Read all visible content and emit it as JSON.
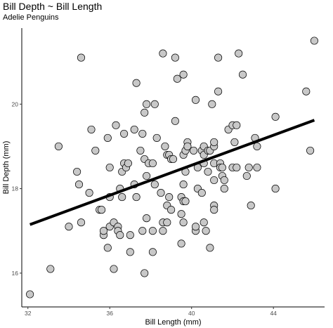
{
  "chart_data": {
    "type": "scatter",
    "title": "Bill Depth ~ Bill Length",
    "subtitle": "Adelie Penguins",
    "xlabel": "Bill Length (mm)",
    "ylabel": "Bill Depth (mm)",
    "xlim": [
      31.7,
      46.5
    ],
    "ylim": [
      15.2,
      21.8
    ],
    "x_ticks": [
      32,
      36,
      40,
      44
    ],
    "y_ticks": [
      16,
      18,
      20
    ],
    "grid": false,
    "point_fill": "#c8c8c8",
    "point_stroke": "#000000",
    "trend_color": "#000000",
    "trend_line": [
      [
        32.1,
        17.15
      ],
      [
        46.0,
        19.62
      ]
    ],
    "points": [
      [
        32.1,
        15.5
      ],
      [
        33.1,
        16.1
      ],
      [
        33.5,
        19.0
      ],
      [
        34.0,
        17.1
      ],
      [
        34.4,
        18.4
      ],
      [
        34.5,
        18.1
      ],
      [
        34.6,
        21.1
      ],
      [
        34.6,
        17.2
      ],
      [
        35.0,
        17.9
      ],
      [
        35.1,
        19.4
      ],
      [
        35.3,
        18.9
      ],
      [
        35.5,
        17.5
      ],
      [
        35.6,
        17.5
      ],
      [
        35.7,
        16.9
      ],
      [
        35.7,
        17.0
      ],
      [
        35.9,
        16.6
      ],
      [
        35.9,
        19.2
      ],
      [
        36.0,
        17.1
      ],
      [
        36.0,
        18.5
      ],
      [
        36.0,
        17.8
      ],
      [
        36.2,
        17.2
      ],
      [
        36.2,
        16.1
      ],
      [
        36.3,
        19.5
      ],
      [
        36.4,
        17.1
      ],
      [
        36.4,
        17.0
      ],
      [
        36.5,
        16.9
      ],
      [
        36.5,
        18.0
      ],
      [
        36.6,
        17.8
      ],
      [
        36.6,
        18.4
      ],
      [
        36.7,
        18.6
      ],
      [
        36.7,
        19.3
      ],
      [
        36.8,
        18.5
      ],
      [
        36.9,
        18.6
      ],
      [
        37.0,
        16.9
      ],
      [
        37.0,
        16.5
      ],
      [
        37.2,
        18.1
      ],
      [
        37.2,
        19.4
      ],
      [
        37.3,
        20.5
      ],
      [
        37.3,
        17.8
      ],
      [
        37.5,
        18.9
      ],
      [
        37.6,
        19.3
      ],
      [
        37.6,
        17.0
      ],
      [
        37.7,
        18.7
      ],
      [
        37.7,
        16.0
      ],
      [
        37.7,
        19.8
      ],
      [
        37.8,
        20.0
      ],
      [
        37.8,
        17.3
      ],
      [
        37.8,
        18.3
      ],
      [
        37.9,
        18.6
      ],
      [
        38.1,
        18.6
      ],
      [
        38.1,
        17.0
      ],
      [
        38.1,
        16.5
      ],
      [
        38.2,
        18.1
      ],
      [
        38.2,
        20.0
      ],
      [
        38.3,
        19.2
      ],
      [
        38.5,
        17.9
      ],
      [
        38.6,
        21.2
      ],
      [
        38.6,
        17.2
      ],
      [
        38.6,
        17.0
      ],
      [
        38.7,
        19.0
      ],
      [
        38.8,
        18.8
      ],
      [
        38.8,
        17.2
      ],
      [
        38.8,
        17.6
      ],
      [
        38.9,
        17.8
      ],
      [
        38.9,
        18.8
      ],
      [
        39.0,
        17.5
      ],
      [
        39.0,
        18.7
      ],
      [
        39.1,
        18.7
      ],
      [
        39.2,
        21.1
      ],
      [
        39.2,
        19.6
      ],
      [
        39.3,
        20.6
      ],
      [
        39.5,
        17.4
      ],
      [
        39.5,
        16.7
      ],
      [
        39.5,
        17.8
      ],
      [
        39.6,
        18.8
      ],
      [
        39.6,
        17.7
      ],
      [
        39.6,
        20.7
      ],
      [
        39.6,
        17.2
      ],
      [
        39.6,
        18.1
      ],
      [
        39.7,
        18.9
      ],
      [
        39.7,
        17.7
      ],
      [
        39.7,
        18.4
      ],
      [
        39.8,
        19.1
      ],
      [
        39.8,
        19.0
      ],
      [
        40.1,
        18.9
      ],
      [
        40.2,
        17.0
      ],
      [
        40.2,
        17.1
      ],
      [
        40.2,
        20.1
      ],
      [
        40.3,
        18.0
      ],
      [
        40.3,
        18.5
      ],
      [
        40.5,
        17.9
      ],
      [
        40.5,
        18.9
      ],
      [
        40.6,
        18.6
      ],
      [
        40.6,
        17.2
      ],
      [
        40.6,
        19.0
      ],
      [
        40.6,
        18.8
      ],
      [
        40.7,
        17.0
      ],
      [
        40.8,
        18.4
      ],
      [
        40.8,
        18.9
      ],
      [
        40.9,
        18.9
      ],
      [
        40.9,
        16.6
      ],
      [
        41.0,
        20.0
      ],
      [
        41.1,
        17.6
      ],
      [
        41.1,
        18.2
      ],
      [
        41.1,
        17.5
      ],
      [
        41.1,
        19.0
      ],
      [
        41.1,
        18.6
      ],
      [
        41.1,
        19.1
      ],
      [
        41.3,
        20.3
      ],
      [
        41.3,
        21.1
      ],
      [
        41.4,
        18.6
      ],
      [
        41.4,
        18.5
      ],
      [
        41.5,
        18.3
      ],
      [
        41.5,
        18.5
      ],
      [
        41.6,
        18.0
      ],
      [
        41.6,
        18.2
      ],
      [
        41.8,
        19.4
      ],
      [
        42.0,
        19.5
      ],
      [
        42.0,
        18.5
      ],
      [
        42.1,
        19.1
      ],
      [
        42.2,
        19.5
      ],
      [
        42.2,
        18.5
      ],
      [
        42.3,
        21.2
      ],
      [
        42.5,
        20.7
      ],
      [
        42.7,
        18.3
      ],
      [
        42.8,
        18.5
      ],
      [
        42.9,
        17.6
      ],
      [
        43.1,
        19.2
      ],
      [
        43.2,
        19.0
      ],
      [
        43.2,
        18.5
      ],
      [
        44.1,
        19.7
      ],
      [
        44.1,
        18.0
      ],
      [
        45.6,
        20.3
      ],
      [
        45.8,
        18.9
      ],
      [
        46.0,
        21.5
      ]
    ]
  }
}
